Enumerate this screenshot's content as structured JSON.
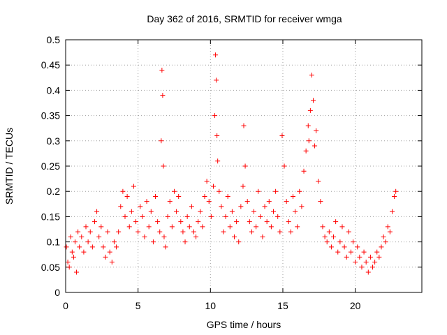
{
  "chart_data": {
    "type": "scatter",
    "title": "Day 362 of 2016, SRMTID for receiver wmga",
    "xlabel": "GPS time / hours",
    "ylabel": "SRMTID / TECUs",
    "xlim": [
      0,
      24.6
    ],
    "ylim": [
      0,
      0.5
    ],
    "x_ticks": [
      0,
      5,
      10,
      15,
      20
    ],
    "y_ticks": [
      0,
      0.05,
      0.1,
      0.15,
      0.2,
      0.25,
      0.3,
      0.35,
      0.4,
      0.45,
      0.5
    ],
    "x_tick_labels": [
      "0",
      "5",
      "10",
      "15",
      "20"
    ],
    "y_tick_labels": [
      "0",
      "0.05",
      "0.1",
      "0.15",
      "0.2",
      "0.25",
      "0.3",
      "0.35",
      "0.4",
      "0.45",
      "0.5"
    ],
    "grid": true,
    "marker": "+",
    "color": "#ff0000",
    "series": [
      {
        "name": "SRMTID",
        "x": [
          0.05,
          0.15,
          0.25,
          0.35,
          0.45,
          0.55,
          0.65,
          0.75,
          0.85,
          0.95,
          1.1,
          1.25,
          1.4,
          1.55,
          1.7,
          1.85,
          2.0,
          2.15,
          2.3,
          2.45,
          2.6,
          2.75,
          2.9,
          3.05,
          3.2,
          3.35,
          3.5,
          3.65,
          3.8,
          3.95,
          4.1,
          4.25,
          4.4,
          4.55,
          4.7,
          4.85,
          5.0,
          5.15,
          5.3,
          5.45,
          5.6,
          5.75,
          5.9,
          6.05,
          6.2,
          6.35,
          6.5,
          6.6,
          6.65,
          6.7,
          6.75,
          6.8,
          6.9,
          7.05,
          7.2,
          7.35,
          7.5,
          7.65,
          7.8,
          7.95,
          8.1,
          8.25,
          8.4,
          8.55,
          8.7,
          8.85,
          9.0,
          9.15,
          9.3,
          9.45,
          9.6,
          9.75,
          9.9,
          10.05,
          10.2,
          10.3,
          10.35,
          10.4,
          10.45,
          10.5,
          10.6,
          10.75,
          10.9,
          11.05,
          11.2,
          11.35,
          11.5,
          11.65,
          11.8,
          11.95,
          12.1,
          12.25,
          12.3,
          12.4,
          12.55,
          12.7,
          12.85,
          13.0,
          13.15,
          13.3,
          13.45,
          13.6,
          13.75,
          13.9,
          14.05,
          14.2,
          14.35,
          14.5,
          14.65,
          14.8,
          14.95,
          15.1,
          15.25,
          15.4,
          15.55,
          15.7,
          15.85,
          16.0,
          16.15,
          16.3,
          16.45,
          16.6,
          16.75,
          16.8,
          16.9,
          17.0,
          17.1,
          17.2,
          17.3,
          17.45,
          17.6,
          17.75,
          17.9,
          18.05,
          18.2,
          18.35,
          18.5,
          18.65,
          18.8,
          18.95,
          19.1,
          19.25,
          19.4,
          19.55,
          19.7,
          19.85,
          20.0,
          20.15,
          20.3,
          20.45,
          20.6,
          20.75,
          20.9,
          21.05,
          21.2,
          21.35,
          21.5,
          21.65,
          21.8,
          21.95,
          22.1,
          22.25,
          22.4,
          22.55,
          22.7,
          22.8
        ],
        "y": [
          0.09,
          0.06,
          0.05,
          0.11,
          0.08,
          0.07,
          0.1,
          0.04,
          0.12,
          0.09,
          0.11,
          0.08,
          0.13,
          0.1,
          0.12,
          0.09,
          0.14,
          0.16,
          0.11,
          0.13,
          0.09,
          0.07,
          0.12,
          0.08,
          0.06,
          0.1,
          0.09,
          0.12,
          0.17,
          0.2,
          0.15,
          0.19,
          0.13,
          0.16,
          0.21,
          0.14,
          0.12,
          0.17,
          0.15,
          0.11,
          0.18,
          0.13,
          0.16,
          0.1,
          0.19,
          0.14,
          0.12,
          0.3,
          0.44,
          0.39,
          0.25,
          0.11,
          0.09,
          0.15,
          0.18,
          0.13,
          0.2,
          0.16,
          0.19,
          0.14,
          0.12,
          0.1,
          0.15,
          0.13,
          0.17,
          0.12,
          0.11,
          0.14,
          0.16,
          0.13,
          0.19,
          0.22,
          0.18,
          0.15,
          0.21,
          0.35,
          0.47,
          0.42,
          0.31,
          0.26,
          0.2,
          0.17,
          0.12,
          0.15,
          0.19,
          0.13,
          0.16,
          0.11,
          0.14,
          0.1,
          0.17,
          0.21,
          0.33,
          0.25,
          0.18,
          0.14,
          0.12,
          0.16,
          0.13,
          0.2,
          0.15,
          0.11,
          0.17,
          0.14,
          0.18,
          0.13,
          0.16,
          0.2,
          0.15,
          0.12,
          0.31,
          0.25,
          0.18,
          0.14,
          0.12,
          0.19,
          0.16,
          0.13,
          0.2,
          0.17,
          0.24,
          0.28,
          0.33,
          0.3,
          0.36,
          0.43,
          0.38,
          0.29,
          0.32,
          0.22,
          0.18,
          0.13,
          0.11,
          0.1,
          0.12,
          0.09,
          0.11,
          0.14,
          0.08,
          0.1,
          0.13,
          0.09,
          0.07,
          0.12,
          0.08,
          0.1,
          0.06,
          0.09,
          0.07,
          0.05,
          0.08,
          0.06,
          0.04,
          0.07,
          0.05,
          0.06,
          0.08,
          0.07,
          0.09,
          0.11,
          0.1,
          0.13,
          0.12,
          0.16,
          0.19,
          0.2
        ]
      }
    ]
  }
}
